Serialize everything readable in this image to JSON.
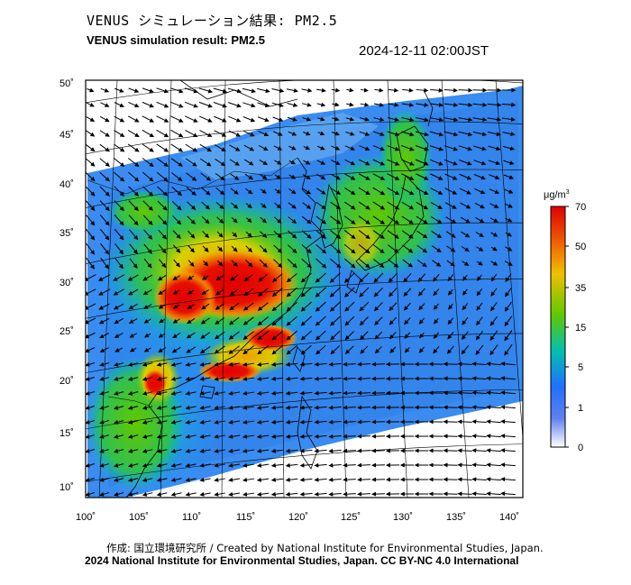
{
  "title_jp": "VENUS シミュレーション結果: PM2.5",
  "title_en": "VENUS simulation result: PM2.5",
  "timestamp": "2024-12-11 02:00JST",
  "map": {
    "lat_ticks": [
      "50˚",
      "45˚",
      "40˚",
      "35˚",
      "30˚",
      "25˚",
      "20˚",
      "15˚",
      "10˚"
    ],
    "lon_ticks": [
      "100˚",
      "105˚",
      "110˚",
      "115˚",
      "120˚",
      "125˚",
      "130˚",
      "135˚",
      "140˚"
    ]
  },
  "colorbar": {
    "unit": "μg/m",
    "unit_sup": "3",
    "labels": [
      "70",
      "50",
      "35",
      "15",
      "5",
      "1",
      "0"
    ],
    "colors": [
      "#e00000",
      "#f08000",
      "#e8d000",
      "#50c000",
      "#00c0c0",
      "#2080ff",
      "#ffffff"
    ]
  },
  "footer": {
    "credit": "作成: 国立環境研究所 / Created by National Institute for Environmental Studies, Japan.",
    "copyright": "2024 National Institute for Environmental Studies, Japan. CC BY-NC 4.0 International"
  }
}
